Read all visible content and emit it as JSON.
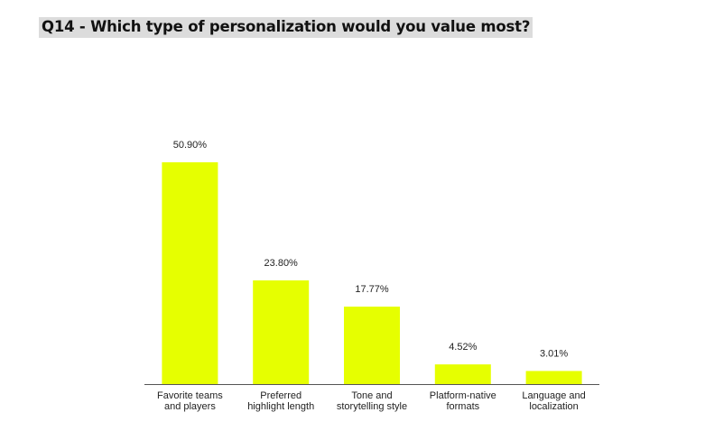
{
  "title": "Q14 - Which type of personalization would you value most?",
  "colors": {
    "bar": "#e6ff00",
    "axis": "#555555",
    "text": "#222222"
  },
  "chart_data": {
    "type": "bar",
    "title": "Q14 - Which type of personalization would you value most?",
    "categories": [
      [
        "Favorite teams",
        "and players"
      ],
      [
        "Preferred",
        "highlight length"
      ],
      [
        "Tone and",
        "storytelling style"
      ],
      [
        "Platform-native",
        "formats"
      ],
      [
        "Language and",
        "localization"
      ]
    ],
    "values": [
      50.9,
      23.8,
      17.77,
      4.52,
      3.01
    ],
    "value_labels": [
      "50.90%",
      "23.80%",
      "17.77%",
      "4.52%",
      "3.01%"
    ],
    "xlabel": "",
    "ylabel": "",
    "ylim": [
      0,
      50.9
    ],
    "grid": false,
    "legend": "none"
  }
}
